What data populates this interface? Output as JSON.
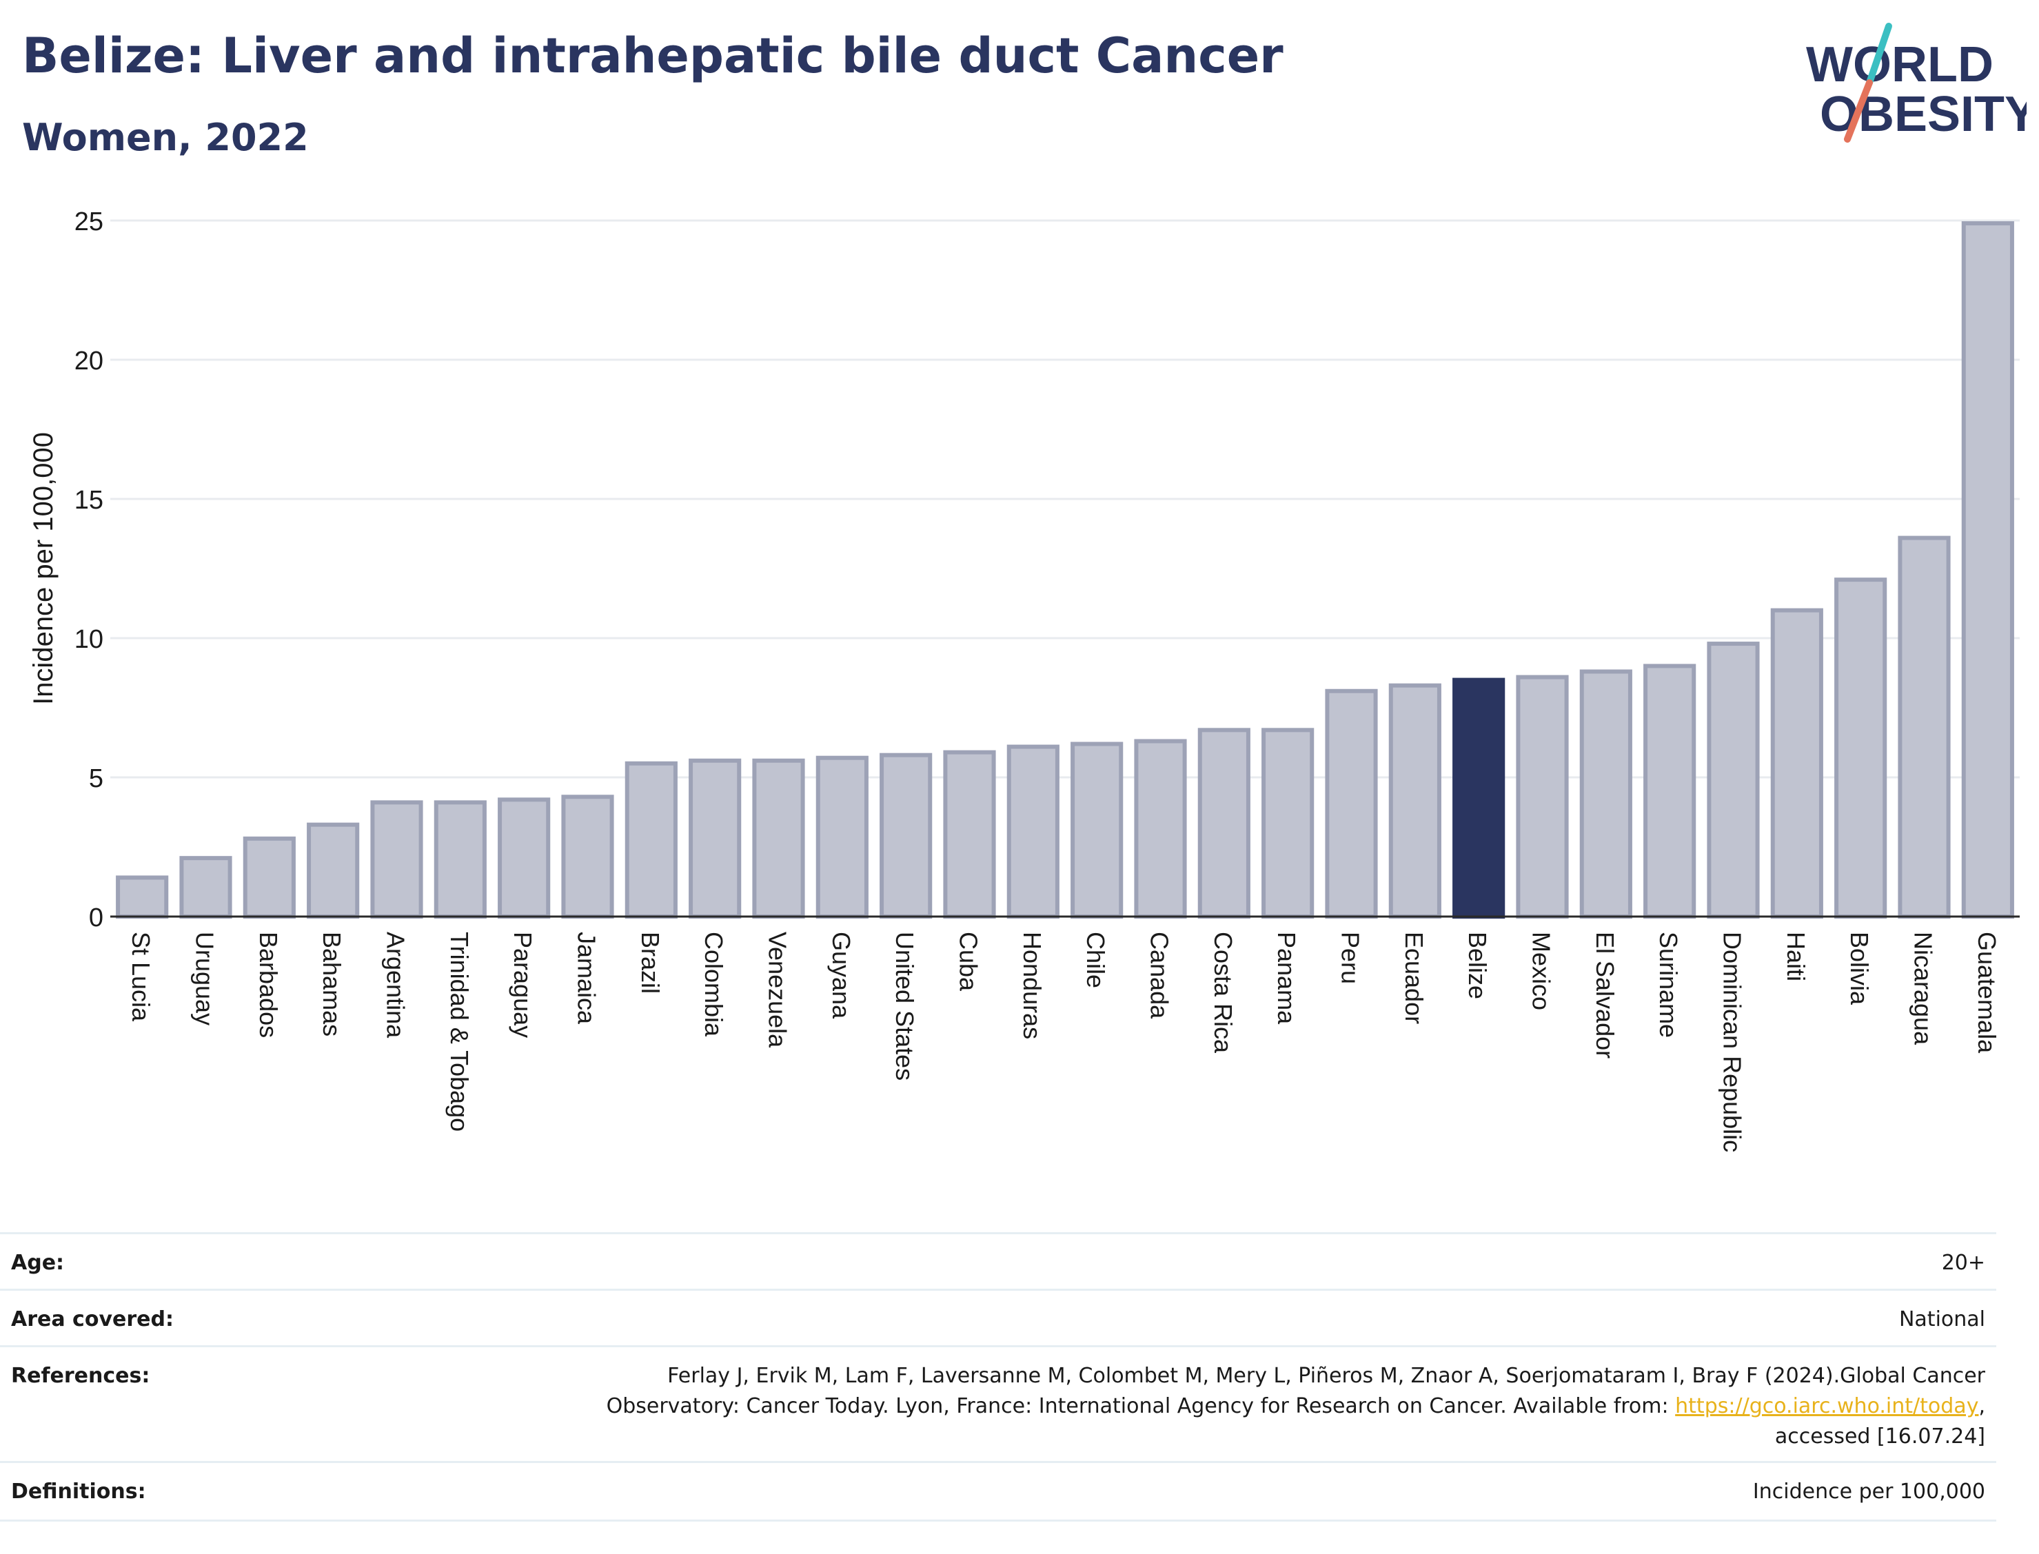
{
  "header": {
    "title": "Belize: Liver and intrahepatic bile duct Cancer",
    "subtitle": "Women, 2022",
    "logo_line1": "WORLD",
    "logo_line2": "OBESITY"
  },
  "chart_data": {
    "type": "bar",
    "ylabel": "Incidence per 100,000",
    "xlabel": "",
    "ylim": [
      0,
      25
    ],
    "yticks": [
      0,
      5,
      10,
      15,
      20,
      25
    ],
    "grid": true,
    "highlight": "Belize",
    "colors": {
      "bar": "#c0c3d0",
      "bar_edge": "#9da2b6",
      "highlight": "#2a3560",
      "grid": "#e8ebef"
    },
    "categories": [
      "St Lucia",
      "Uruguay",
      "Barbados",
      "Bahamas",
      "Argentina",
      "Trinidad & Tobago",
      "Paraguay",
      "Jamaica",
      "Brazil",
      "Colombia",
      "Venezuela",
      "Guyana",
      "United States",
      "Cuba",
      "Honduras",
      "Chile",
      "Canada",
      "Costa Rica",
      "Panama",
      "Peru",
      "Ecuador",
      "Belize",
      "Mexico",
      "El Salvador",
      "Suriname",
      "Dominican Republic",
      "Haiti",
      "Bolivia",
      "Nicaragua",
      "Guatemala"
    ],
    "values": [
      1.4,
      2.1,
      2.8,
      3.3,
      4.1,
      4.1,
      4.2,
      4.3,
      5.5,
      5.6,
      5.6,
      5.7,
      5.8,
      5.9,
      6.1,
      6.2,
      6.3,
      6.7,
      6.7,
      8.1,
      8.3,
      8.5,
      8.6,
      8.8,
      9.0,
      9.8,
      11.0,
      12.1,
      13.6,
      24.9
    ]
  },
  "meta": {
    "age_label": "Age:",
    "age_value": "20+",
    "area_label": "Area covered:",
    "area_value": "National",
    "references_label": "References:",
    "references_line1": "Ferlay J, Ervik M, Lam F, Laversanne M, Colombet M, Mery L, Piñeros M, Znaor A, Soerjomataram I, Bray F (2024).Global Cancer",
    "references_line2_pre": "Observatory: Cancer Today. Lyon, France: International Agency for Research on Cancer. Available from: ",
    "references_link": "https://gco.iarc.who.int/today",
    "references_line2_post": ",",
    "references_line3": "accessed [16.07.24]",
    "definitions_label": "Definitions:",
    "definitions_value": "Incidence per 100,000"
  }
}
